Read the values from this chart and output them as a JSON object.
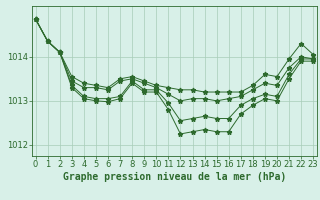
{
  "hours": [
    0,
    1,
    2,
    3,
    4,
    5,
    6,
    7,
    8,
    9,
    10,
    11,
    12,
    13,
    14,
    15,
    16,
    17,
    18,
    19,
    20,
    21,
    22,
    23
  ],
  "line_top": [
    1014.85,
    1014.35,
    1014.1,
    1013.55,
    1013.4,
    1013.35,
    1013.3,
    1013.5,
    1013.55,
    1013.45,
    1013.35,
    1013.3,
    1013.25,
    1013.25,
    1013.2,
    1013.2,
    1013.2,
    1013.2,
    1013.35,
    1013.6,
    1013.55,
    1013.95,
    1014.3,
    1014.05
  ],
  "line_upper": [
    1014.85,
    1014.35,
    1014.1,
    1013.45,
    1013.3,
    1013.3,
    1013.25,
    1013.45,
    1013.5,
    1013.4,
    1013.3,
    1013.15,
    1013.0,
    1013.05,
    1013.05,
    1013.0,
    1013.05,
    1013.1,
    1013.25,
    1013.4,
    1013.35,
    1013.75,
    1014.0,
    1013.95
  ],
  "line_lower": [
    1014.85,
    1014.35,
    1014.1,
    1013.35,
    1013.1,
    1013.05,
    1013.05,
    1013.1,
    1013.45,
    1013.25,
    1013.25,
    1012.95,
    1012.55,
    1012.6,
    1012.65,
    1012.6,
    1012.6,
    1012.9,
    1013.05,
    1013.15,
    1013.1,
    1013.6,
    1013.95,
    1013.95
  ],
  "line_bottom": [
    1014.85,
    1014.35,
    1014.1,
    1013.3,
    1013.05,
    1013.0,
    1012.98,
    1013.05,
    1013.4,
    1013.2,
    1013.2,
    1012.8,
    1012.25,
    1012.3,
    1012.35,
    1012.3,
    1012.3,
    1012.7,
    1012.9,
    1013.05,
    1013.0,
    1013.5,
    1013.9,
    1013.9
  ],
  "line_color": "#2d6a2d",
  "bg_color": "#d8f0e8",
  "grid_color": "#a8cdb8",
  "ylim": [
    1011.75,
    1015.15
  ],
  "yticks": [
    1012,
    1013,
    1014
  ],
  "xlim": [
    -0.3,
    23.3
  ],
  "xlabel": "Graphe pression niveau de la mer (hPa)",
  "xlabel_fontsize": 7,
  "tick_fontsize": 6,
  "marker": "*",
  "markersize": 3.5,
  "linewidth": 0.7
}
